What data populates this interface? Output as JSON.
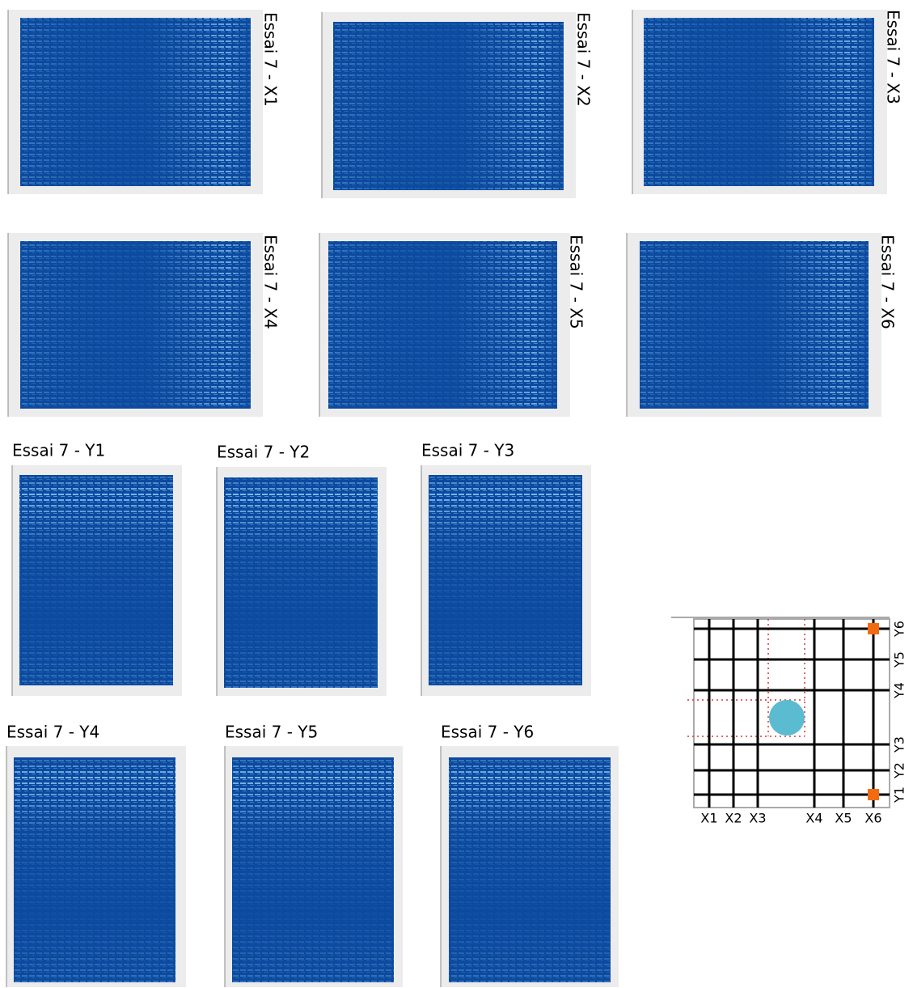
{
  "panels": [
    {
      "title": "Essai 7 - X1"
    },
    {
      "title": "Essai 7 - X2"
    },
    {
      "title": "Essai 7 - X3"
    },
    {
      "title": "Essai 7 - X4"
    },
    {
      "title": "Essai 7 - X5"
    },
    {
      "title": "Essai 7 - X6"
    },
    {
      "title": "Essai 7 - Y1"
    },
    {
      "title": "Essai 7 - Y2"
    },
    {
      "title": "Essai 7 - Y3"
    },
    {
      "title": "Essai 7 - Y4"
    },
    {
      "title": "Essai 7 - Y5"
    },
    {
      "title": "Essai 7 - Y6"
    }
  ],
  "diagram": {
    "x_labels": [
      "X1",
      "X2",
      "X3",
      "X4",
      "X5",
      "X6"
    ],
    "y_labels": [
      "Y1",
      "Y2",
      "Y3",
      "Y4",
      "Y5",
      "Y6"
    ]
  }
}
